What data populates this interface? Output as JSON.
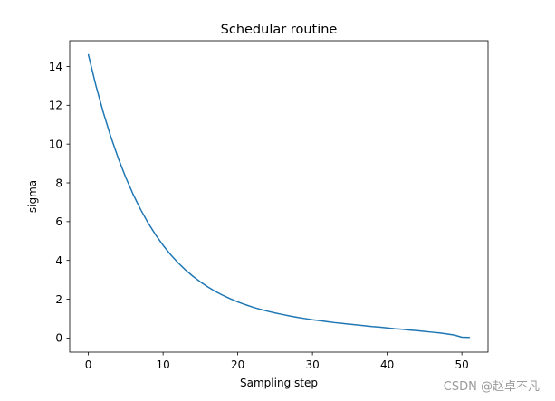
{
  "chart_data": {
    "type": "line",
    "title": "Schedular routine",
    "xlabel": "Sampling step",
    "ylabel": "sigma",
    "xlim": [
      -2.5,
      53.5
    ],
    "ylim": [
      -0.73,
      15.33
    ],
    "xticks": [
      0,
      10,
      20,
      30,
      40,
      50
    ],
    "yticks": [
      0,
      2,
      4,
      6,
      8,
      10,
      12,
      14
    ],
    "grid": false,
    "line_color": "#1f77b4",
    "series": [
      {
        "x": [
          0,
          1,
          2,
          3,
          4,
          5,
          6,
          7,
          8,
          9,
          10,
          11,
          12,
          13,
          14,
          15,
          16,
          17,
          18,
          19,
          20,
          21,
          22,
          23,
          24,
          25,
          26,
          27,
          28,
          29,
          30,
          31,
          32,
          33,
          34,
          35,
          36,
          37,
          38,
          39,
          40,
          41,
          42,
          43,
          44,
          45,
          46,
          47,
          48,
          49,
          50,
          51
        ],
        "y": [
          14.61,
          13.03,
          11.63,
          10.38,
          9.27,
          8.28,
          7.4,
          6.62,
          5.93,
          5.32,
          4.78,
          4.3,
          3.88,
          3.51,
          3.18,
          2.89,
          2.63,
          2.4,
          2.2,
          2.02,
          1.86,
          1.72,
          1.59,
          1.48,
          1.38,
          1.29,
          1.21,
          1.13,
          1.06,
          1.0,
          0.94,
          0.89,
          0.84,
          0.79,
          0.75,
          0.71,
          0.67,
          0.63,
          0.59,
          0.56,
          0.52,
          0.48,
          0.45,
          0.41,
          0.38,
          0.34,
          0.3,
          0.26,
          0.21,
          0.15,
          0.04,
          0.03
        ]
      }
    ]
  },
  "watermark": "CSDN @赵卓不凡"
}
